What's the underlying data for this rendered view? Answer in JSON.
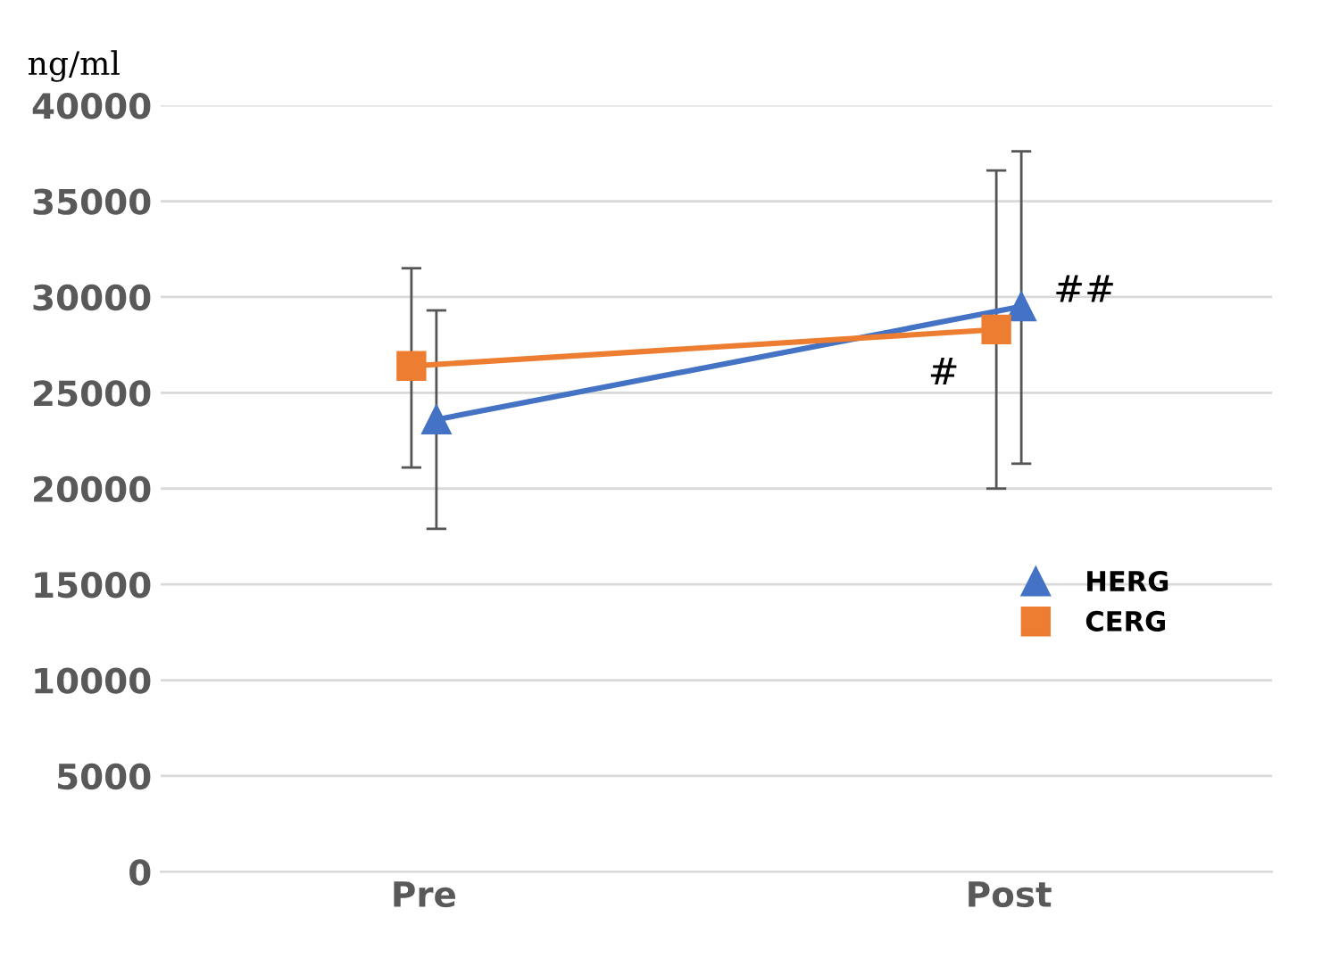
{
  "chart_data": {
    "type": "line",
    "ylabel": "ng/ml",
    "categories": [
      "Pre",
      "Post"
    ],
    "series": [
      {
        "name": "HERG",
        "color": "#4472c4",
        "marker": "triangle",
        "values": [
          23600,
          29500
        ],
        "errors": [
          [
            17900,
            29300
          ],
          [
            21300,
            37600
          ]
        ]
      },
      {
        "name": "CERG",
        "color": "#ed7d31",
        "marker": "square",
        "values": [
          26400,
          28300
        ],
        "errors": [
          [
            21100,
            31500
          ],
          [
            20000,
            36600
          ]
        ]
      }
    ],
    "annotations": [
      {
        "text": "##",
        "x": "Post",
        "y": 29500
      },
      {
        "text": "#",
        "x": "Post",
        "y": 28300
      }
    ],
    "ylim": [
      0,
      40000
    ],
    "yticks": [
      0,
      5000,
      10000,
      15000,
      20000,
      25000,
      30000,
      35000,
      40000
    ],
    "grid": "y",
    "legend": "right"
  }
}
